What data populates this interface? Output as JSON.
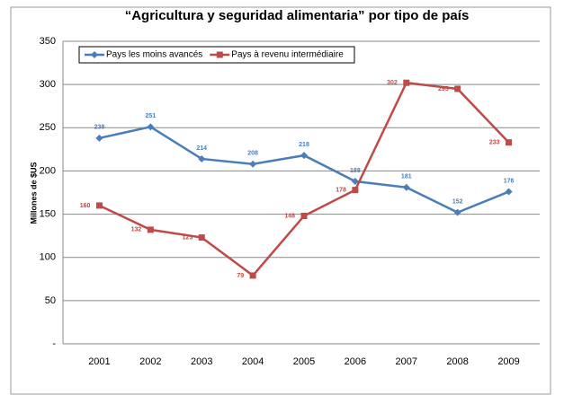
{
  "chart_data": {
    "type": "line",
    "title": "“Agricultura y seguridad alimentaria” por tipo de país",
    "y_label": "Millones de $US",
    "categories": [
      "2001",
      "2002",
      "2003",
      "2004",
      "2005",
      "2006",
      "2007",
      "2008",
      "2009"
    ],
    "series": [
      {
        "name": "Pays les moins avancés",
        "color": "#4a7ebb",
        "values": [
          238,
          251,
          214,
          208,
          218,
          188,
          181,
          152,
          176
        ]
      },
      {
        "name": "Pays à revenu intermédiaire",
        "color": "#be4b48",
        "values": [
          160,
          132,
          123,
          79,
          148,
          178,
          302,
          295,
          233
        ]
      }
    ],
    "ylim": [
      0,
      350
    ],
    "yticks": [
      {
        "value": 0,
        "label": "-"
      },
      50,
      100,
      150,
      200,
      250,
      300,
      350
    ],
    "grid": true,
    "legend": "top-left"
  }
}
